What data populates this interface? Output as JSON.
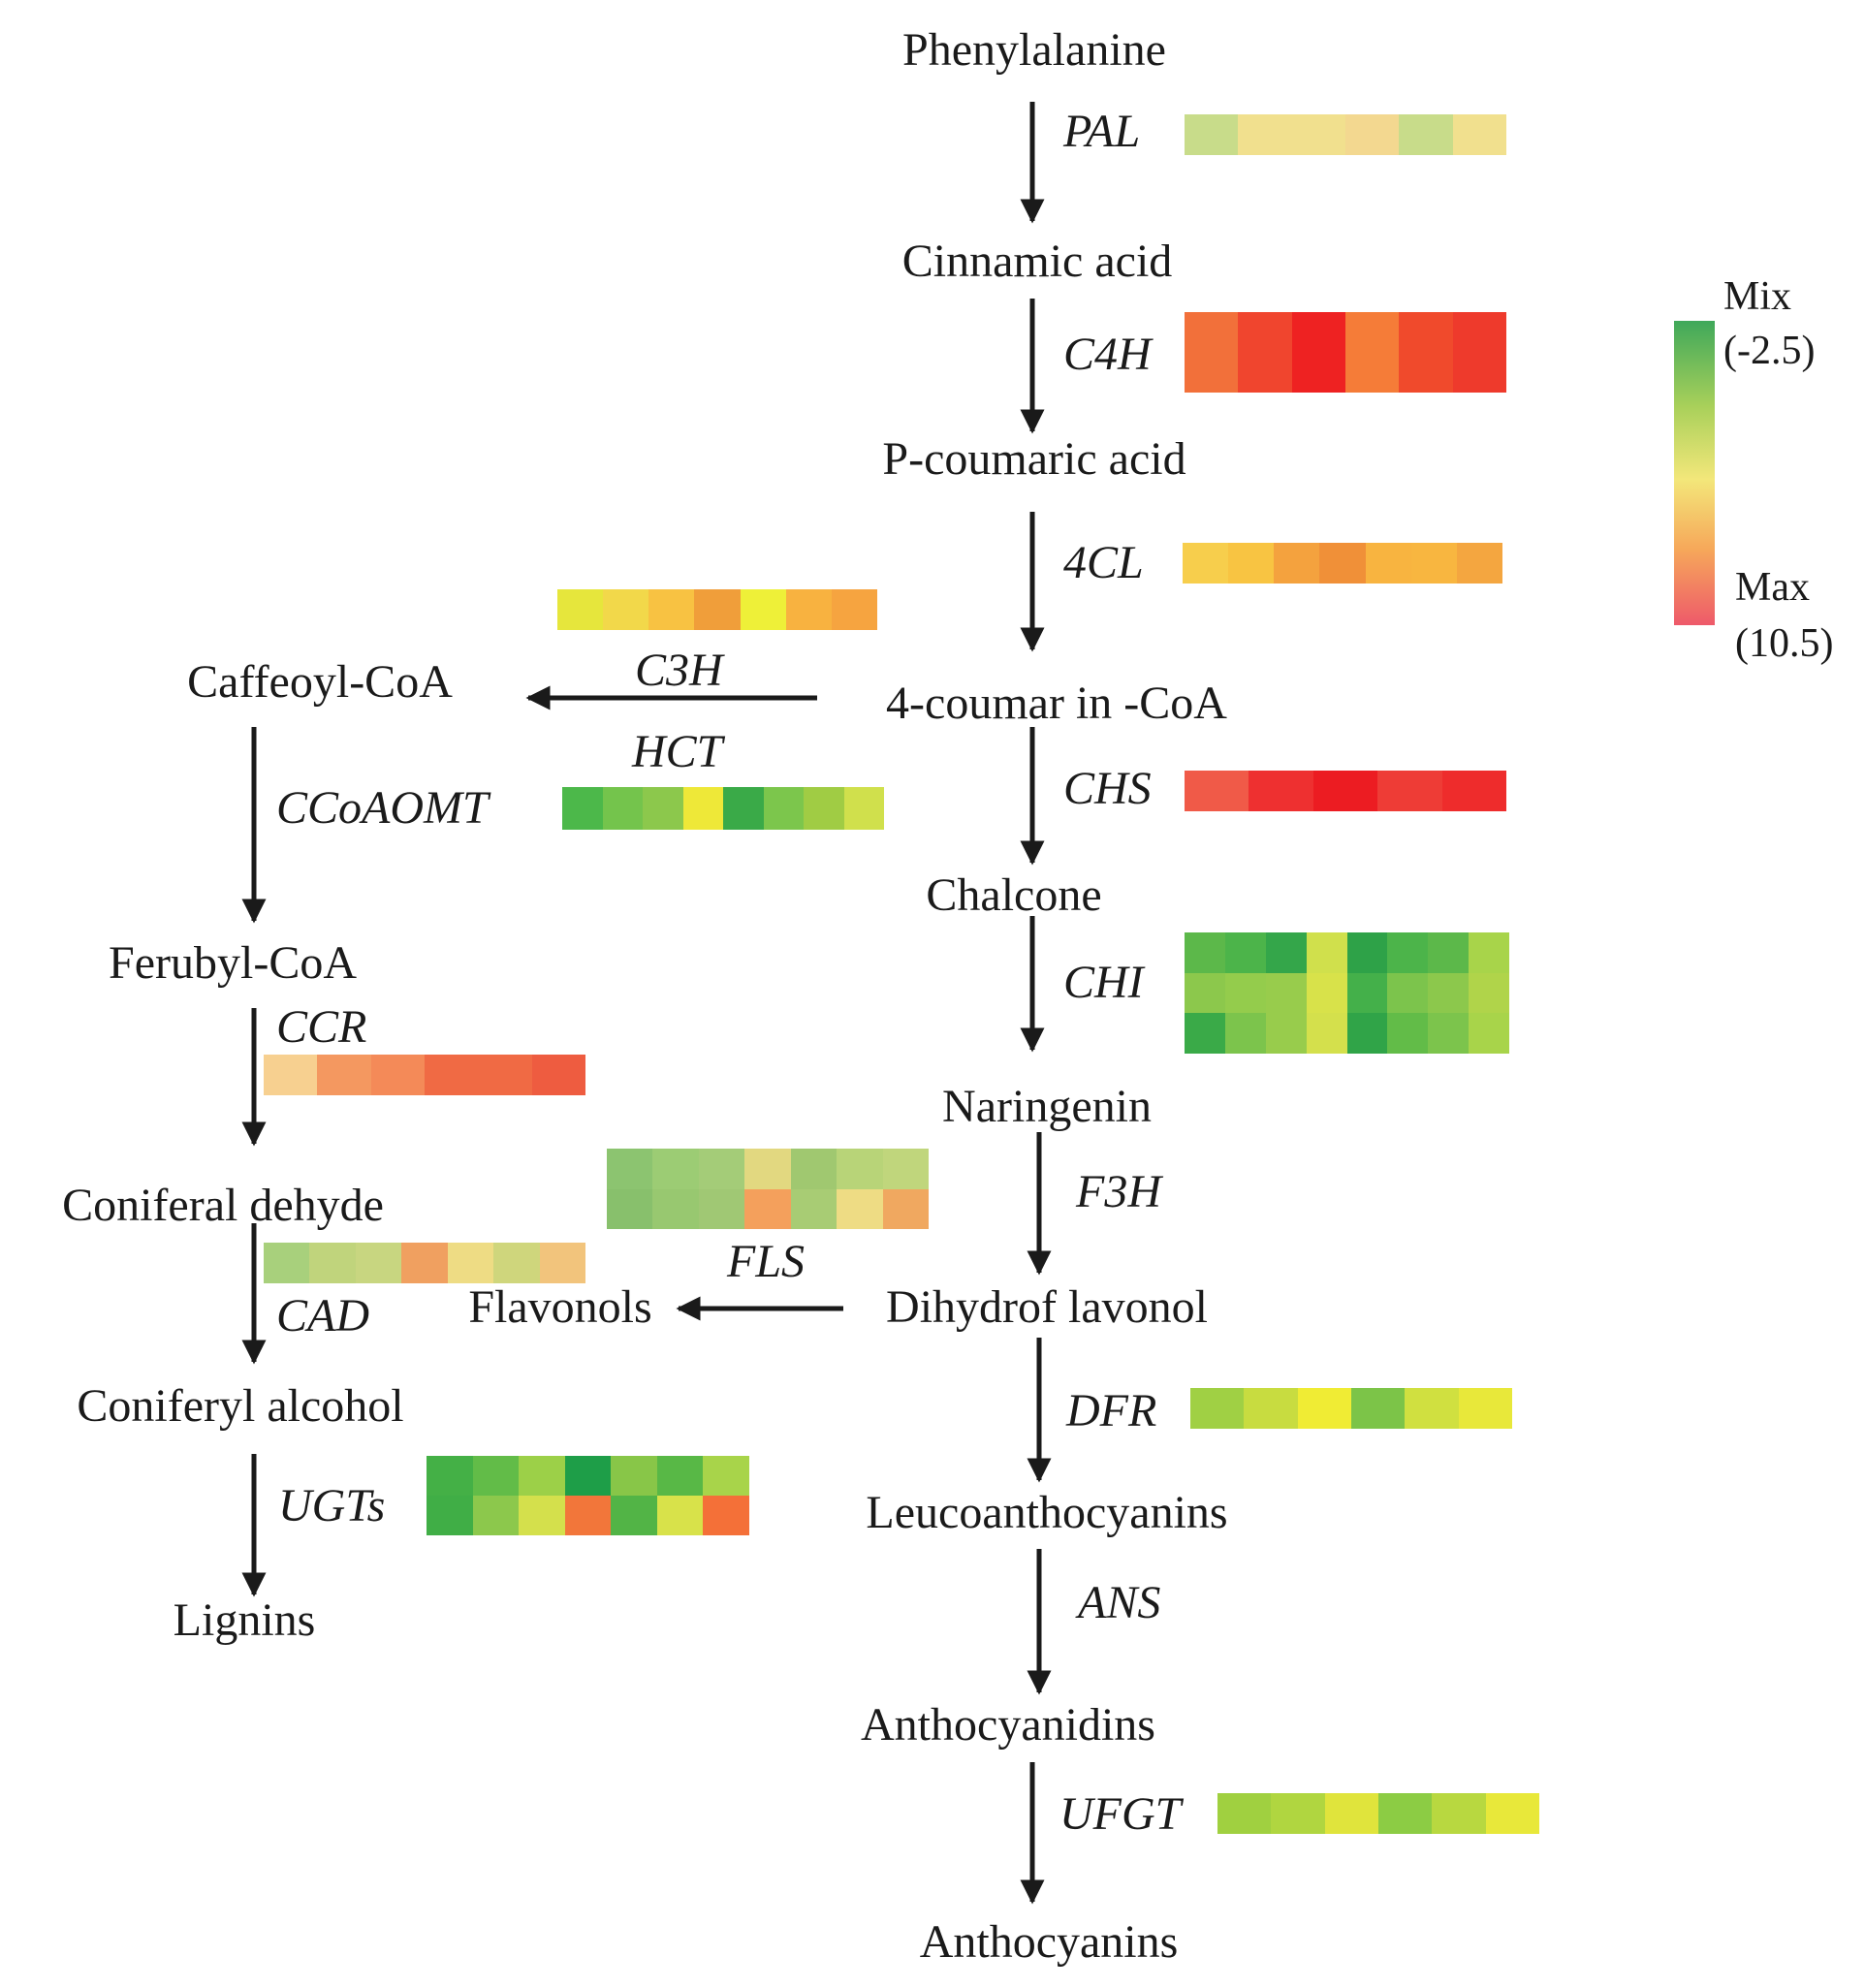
{
  "metabolites": {
    "phenylalanine": "Phenylalanine",
    "cinnamic_acid": "Cinnamic acid",
    "p_coumaric_acid": "P-coumaric acid",
    "coumaroyl_coa": "4-coumar in -CoA",
    "caffeoyl_coa": "Caffeoyl-CoA",
    "feruloyl_coa": "Ferubyl-CoA",
    "coniferaldehyde": "Coniferal dehyde",
    "coniferyl_alcohol": "Coniferyl alcohol",
    "lignins": "Lignins",
    "chalcone": "Chalcone",
    "naringenin": "Naringenin",
    "dihydroflavonol": "Dihydrof lavonol",
    "flavonols": "Flavonols",
    "leucoanthocyanins": "Leucoanthocyanins",
    "anthocyanidins": "Anthocyanidins",
    "anthocyanins": "Anthocyanins"
  },
  "genes": {
    "pal": "PAL",
    "c4h": "C4H",
    "cl4": "4CL",
    "c3h": "C3H",
    "hct": "HCT",
    "ccoaomt": "CCoAOMT",
    "ccr": "CCR",
    "cad": "CAD",
    "ugts": "UGTs",
    "chs": "CHS",
    "chi": "CHI",
    "f3h": "F3H",
    "fls": "FLS",
    "dfr": "DFR",
    "ans": "ANS",
    "ufgt": "UFGT"
  },
  "legend": {
    "min_label": "Mix",
    "min_value": "(-2.5)",
    "max_label": "Max",
    "max_value": "(10.5)",
    "colors": [
      "#3fa85a",
      "#a8d05a",
      "#f3e77a",
      "#f6a85a",
      "#ee5a6a"
    ]
  },
  "heatmaps": {
    "pal": [
      [
        "#c8dc8a",
        "#f1e08e",
        "#f1e08e",
        "#f3d890",
        "#c8dc8a",
        "#f1e08e"
      ]
    ],
    "c4h": [
      [
        "#f2703a",
        "#f0452e",
        "#ee2222",
        "#f57c38",
        "#f04a2c",
        "#ee3a2c"
      ]
    ],
    "cl4": [
      [
        "#f7ce4c",
        "#f8c442",
        "#f4a23e",
        "#f09038",
        "#f8b440",
        "#f8b640",
        "#f4a640"
      ]
    ],
    "c3h_hct": [
      [
        "#e6e63c",
        "#f2d84a",
        "#f8c242",
        "#f09e3a",
        "#eef038",
        "#f8b240",
        "#f6a440"
      ]
    ],
    "ccoaomt": [
      [
        "#4cb84a",
        "#74c44c",
        "#8cc84c",
        "#eee838",
        "#3aaa48",
        "#7cc64c",
        "#a0cc44",
        "#d0e04c"
      ]
    ],
    "ccr": [
      [
        "#f7d090",
        "#f49860",
        "#f48a58",
        "#f06a44",
        "#f06a44",
        "#ee5c40"
      ]
    ],
    "ugts": [
      [
        "#44b046",
        "#62bc48",
        "#9cd048",
        "#1e9e48",
        "#88c648",
        "#58b846",
        "#a8d44a"
      ],
      [
        "#40ae46",
        "#8cc84c",
        "#d4e04c",
        "#f2763a",
        "#52b446",
        "#d8e24a",
        "#f47038"
      ]
    ],
    "chs": [
      [
        "#f05a48",
        "#ee3030",
        "#ec1c22",
        "#ee3c36",
        "#ee2c2c"
      ]
    ],
    "chi": [
      [
        "#5cb84a",
        "#4cb44a",
        "#34a64a",
        "#d0e04c",
        "#2ea248",
        "#4cb44a",
        "#5cb84a",
        "#a8d44a"
      ],
      [
        "#8cc84c",
        "#94cc4c",
        "#98cc4c",
        "#d8e24a",
        "#44b04a",
        "#7cc44c",
        "#8cc84c",
        "#b0d44a"
      ],
      [
        "#3aaa48",
        "#7cc44c",
        "#98cc4c",
        "#d4e04c",
        "#30a448",
        "#62bc48",
        "#7cc44c",
        "#a8d44a"
      ]
    ],
    "fls": [
      [
        "#8cc470",
        "#9ccc74",
        "#a4cc78",
        "#e2d880",
        "#a0c870",
        "#b8d478",
        "#c0d67c"
      ],
      [
        "#88c06c",
        "#98c870",
        "#a0c874",
        "#f4a05c",
        "#a8cc74",
        "#eedc84",
        "#f0a860"
      ]
    ],
    "cad": [
      [
        "#a8d07c",
        "#c0d47c",
        "#c8d680",
        "#f0a060",
        "#eedc84",
        "#cfd67c",
        "#f2c47c"
      ]
    ],
    "dfr": [
      [
        "#a0d044",
        "#c8dc40",
        "#f0ec34",
        "#7cc448",
        "#d0e040",
        "#e8e83a"
      ]
    ],
    "ufgt": [
      [
        "#a0d040",
        "#b0d640",
        "#e0e43c",
        "#8ccc44",
        "#b8d840",
        "#e8e83a"
      ]
    ]
  }
}
